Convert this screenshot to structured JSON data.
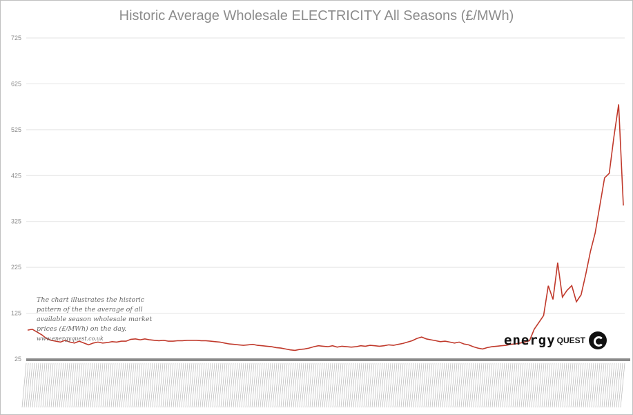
{
  "chart_data": {
    "type": "line",
    "title": "Historic Average Wholesale ELECTRICITY All Seasons (£/MWh)",
    "xlabel": "",
    "ylabel": "",
    "ylim": [
      25,
      725
    ],
    "yticks": [
      25,
      125,
      225,
      325,
      425,
      525,
      625,
      725
    ],
    "grid": true,
    "legend": "none",
    "series_color": "#c0392b",
    "series": [
      {
        "values": [
          88,
          90,
          84,
          78,
          70,
          66,
          64,
          62,
          66,
          62,
          60,
          64,
          60,
          56,
          60,
          62,
          60,
          61,
          63,
          62,
          64,
          64,
          68,
          69,
          67,
          69,
          67,
          66,
          65,
          66,
          64,
          64,
          65,
          65,
          66,
          66,
          66,
          65,
          65,
          64,
          63,
          62,
          60,
          58,
          57,
          56,
          55,
          56,
          57,
          55,
          54,
          53,
          52,
          50,
          49,
          47,
          45,
          44,
          46,
          47,
          49,
          52,
          54,
          53,
          52,
          54,
          51,
          53,
          52,
          51,
          52,
          54,
          53,
          55,
          54,
          53,
          54,
          56,
          55,
          57,
          59,
          62,
          65,
          70,
          73,
          69,
          67,
          65,
          63,
          64,
          62,
          60,
          62,
          58,
          56,
          52,
          49,
          47,
          50,
          52,
          53,
          54,
          55,
          57,
          58,
          60,
          62,
          65,
          90,
          105,
          120,
          185,
          155,
          235,
          160,
          175,
          185,
          150,
          165,
          210,
          260,
          300,
          360,
          420,
          430,
          510,
          580,
          360
        ]
      }
    ],
    "annotation": "The chart illustrates the historic pattern of the the average of all available season wholesale market prices (£/MWh) on the day.",
    "annotation_link": "www.energyquest.co.uk",
    "logo_text": "energyQUEST"
  }
}
